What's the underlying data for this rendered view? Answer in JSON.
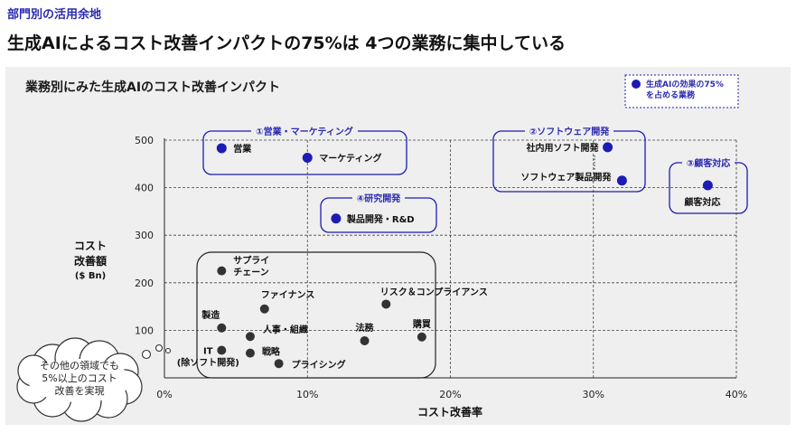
{
  "kicker": "部門別の活用余地",
  "headline": "生成AIによるコスト改善インパクトの75%は 4つの業務に集中している",
  "chart_data": {
    "type": "scatter",
    "title": "業務別にみた生成AIのコスト改善インパクト",
    "xlabel": "コスト改善率",
    "ylabel": [
      "コスト",
      "改善額"
    ],
    "yunit": "($ Bn)",
    "xlim": [
      0,
      40
    ],
    "ylim": [
      0,
      500
    ],
    "x_ticks": [
      "0%",
      "10%",
      "20%",
      "30%",
      "40%"
    ],
    "y_ticks": [
      "100",
      "200",
      "300",
      "400",
      "500"
    ],
    "grid": "dashed",
    "legend": {
      "label": [
        "生成AIの効果の75%",
        "を占める業務"
      ],
      "color": "#1c1cb4",
      "placement": "top-right"
    },
    "highlight_color": "#1c1cb4",
    "other_color": "#333333",
    "groups": [
      {
        "label": "①営業・マーケティング"
      },
      {
        "label": "②ソフトウェア開発"
      },
      {
        "label": "③顧客対応"
      },
      {
        "label": "④研究開発"
      }
    ],
    "points": [
      {
        "label": [
          "営業"
        ],
        "x": 4,
        "y": 483,
        "highlight": true
      },
      {
        "label": [
          "マーケティング"
        ],
        "x": 10,
        "y": 463,
        "highlight": true
      },
      {
        "label": [
          "社内用ソフト開発"
        ],
        "x": 31,
        "y": 485,
        "highlight": true
      },
      {
        "label": [
          "ソフトウェア製品開発"
        ],
        "x": 32,
        "y": 415,
        "highlight": true
      },
      {
        "label": [
          "顧客対応"
        ],
        "x": 38,
        "y": 405,
        "highlight": true
      },
      {
        "label": [
          "製品開発・R&D"
        ],
        "x": 12,
        "y": 335,
        "highlight": true
      },
      {
        "label": [
          "サプライ",
          "チェーン"
        ],
        "x": 4,
        "y": 225,
        "highlight": false
      },
      {
        "label": [
          "ファイナンス"
        ],
        "x": 7,
        "y": 145,
        "highlight": false
      },
      {
        "label": [
          "リスク＆コンプライアンス"
        ],
        "x": 15.5,
        "y": 155,
        "highlight": false
      },
      {
        "label": [
          "製造"
        ],
        "x": 4,
        "y": 105,
        "highlight": false
      },
      {
        "label": [
          "人事・組織"
        ],
        "x": 6,
        "y": 87,
        "highlight": false
      },
      {
        "label": [
          "法務"
        ],
        "x": 14,
        "y": 78,
        "highlight": false
      },
      {
        "label": [
          "購買"
        ],
        "x": 18,
        "y": 86,
        "highlight": false
      },
      {
        "label": [
          "IT",
          "(除ソフト開発)"
        ],
        "x": 4,
        "y": 58,
        "highlight": false
      },
      {
        "label": [
          "戦略"
        ],
        "x": 6,
        "y": 52,
        "highlight": false
      },
      {
        "label": [
          "プライシング"
        ],
        "x": 8,
        "y": 30,
        "highlight": false
      }
    ],
    "annotation": [
      "その他の領域でも",
      "5%以上のコスト",
      "改善を実現"
    ]
  }
}
